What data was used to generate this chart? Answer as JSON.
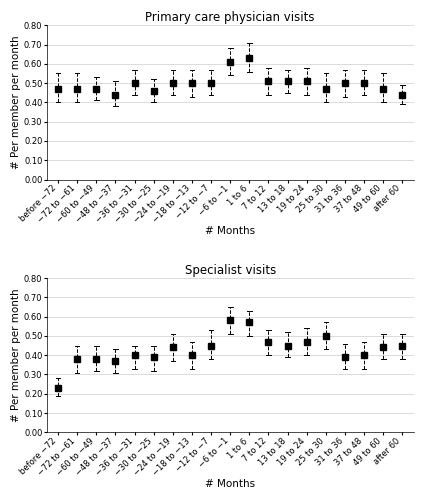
{
  "categories": [
    "before −72",
    "−72 to −61",
    "−60 to −49",
    "−48 to −37",
    "−36 to −31",
    "−30 to −25",
    "−24 to −19",
    "−18 to −13",
    "−12 to −7",
    "−6 to −1",
    "1 to 6",
    "7 to 12",
    "13 to 18",
    "19 to 24",
    "25 to 30",
    "31 to 36",
    "37 to 48",
    "49 to 60",
    "after 60"
  ],
  "panel1": {
    "title": "Primary care physician visits",
    "ylabel": "# Per member per month",
    "xlabel": "# Months",
    "ylim": [
      0.0,
      0.8
    ],
    "yticks": [
      0.0,
      0.1,
      0.2,
      0.3,
      0.4,
      0.5,
      0.6,
      0.7,
      0.8
    ],
    "means": [
      0.47,
      0.47,
      0.47,
      0.44,
      0.5,
      0.46,
      0.5,
      0.5,
      0.5,
      0.61,
      0.63,
      0.51,
      0.51,
      0.51,
      0.47,
      0.5,
      0.5,
      0.47,
      0.44
    ],
    "lows": [
      0.4,
      0.4,
      0.41,
      0.38,
      0.44,
      0.4,
      0.44,
      0.43,
      0.44,
      0.54,
      0.56,
      0.44,
      0.45,
      0.44,
      0.4,
      0.43,
      0.44,
      0.4,
      0.39
    ],
    "highs": [
      0.55,
      0.55,
      0.53,
      0.51,
      0.57,
      0.52,
      0.57,
      0.57,
      0.57,
      0.68,
      0.71,
      0.58,
      0.57,
      0.58,
      0.55,
      0.57,
      0.57,
      0.55,
      0.49
    ]
  },
  "panel2": {
    "title": "Specialist visits",
    "ylabel": "# Per member per month",
    "xlabel": "# Months",
    "ylim": [
      0.0,
      0.8
    ],
    "yticks": [
      0.0,
      0.1,
      0.2,
      0.3,
      0.4,
      0.5,
      0.6,
      0.7,
      0.8
    ],
    "means": [
      0.23,
      0.38,
      0.38,
      0.37,
      0.4,
      0.39,
      0.44,
      0.4,
      0.45,
      0.58,
      0.57,
      0.47,
      0.45,
      0.47,
      0.5,
      0.39,
      0.4,
      0.44,
      0.45
    ],
    "lows": [
      0.19,
      0.31,
      0.32,
      0.31,
      0.33,
      0.32,
      0.37,
      0.33,
      0.38,
      0.51,
      0.5,
      0.4,
      0.39,
      0.4,
      0.43,
      0.33,
      0.33,
      0.38,
      0.38
    ],
    "highs": [
      0.28,
      0.45,
      0.45,
      0.43,
      0.45,
      0.45,
      0.51,
      0.47,
      0.53,
      0.65,
      0.63,
      0.53,
      0.52,
      0.54,
      0.57,
      0.46,
      0.47,
      0.51,
      0.51
    ]
  },
  "marker_style": "s",
  "marker_size": 4,
  "marker_color": "black",
  "line_color": "black",
  "error_linestyle": "--",
  "fig_bg": "white",
  "ax_bg": "white",
  "grid_color": "#cccccc",
  "tick_labelsize": 6,
  "title_fontsize": 8.5,
  "axis_label_fontsize": 7.5
}
